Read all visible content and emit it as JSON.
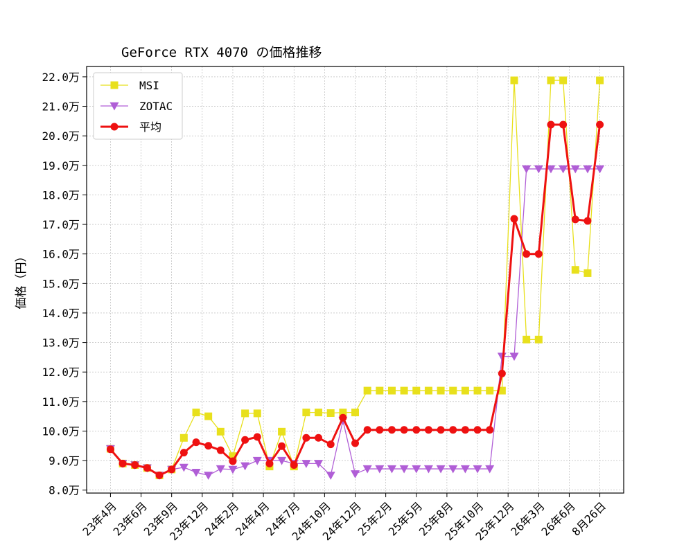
{
  "chart_data": {
    "type": "line",
    "title": "GeForce RTX 4070 の価格推移",
    "xlabel": "",
    "ylabel": "価格（円）",
    "ylim": [
      7.9,
      22.35
    ],
    "yticks": [
      8.0,
      9.0,
      10.0,
      11.0,
      12.0,
      13.0,
      14.0,
      15.0,
      16.0,
      17.0,
      18.0,
      19.0,
      20.0,
      21.0,
      22.0
    ],
    "ytick_labels": [
      "8.0万",
      "9.0万",
      "10.0万",
      "11.0万",
      "12.0万",
      "13.0万",
      "14.0万",
      "15.0万",
      "16.0万",
      "17.0万",
      "18.0万",
      "19.0万",
      "20.0万",
      "21.0万",
      "22.0万"
    ],
    "xtick_positions": [
      0,
      2.5,
      5,
      7.5,
      10,
      12.5,
      15,
      17.5,
      20,
      22.5,
      25,
      27.5,
      30,
      32.5,
      35,
      37.5,
      40
    ],
    "xtick_labels": [
      "23年4月",
      "23年6月",
      "23年9月",
      "23年12月",
      "24年2月",
      "24年4月",
      "24年7月",
      "24年10月",
      "24年12月",
      "25年2月",
      "25年5月",
      "25年8月",
      "25年10月",
      "25年12月",
      "26年3月",
      "26年6月",
      "8月26日"
    ],
    "grid": true,
    "legend_position": "top-left",
    "series": [
      {
        "name": "MSI",
        "color": "#e8e01c",
        "marker": "square",
        "values": [
          9.4,
          8.9,
          8.85,
          8.75,
          8.5,
          8.7,
          9.77,
          10.63,
          10.5,
          9.98,
          9.15,
          10.6,
          10.6,
          8.8,
          9.98,
          8.8,
          10.63,
          10.63,
          10.61,
          10.63,
          10.63,
          11.37,
          11.37,
          11.37,
          11.37,
          11.37,
          11.37,
          11.37,
          11.37,
          11.37,
          11.37,
          11.37,
          11.37,
          21.88,
          13.1,
          13.1,
          21.88,
          21.88,
          15.46,
          15.35,
          21.88
        ]
      },
      {
        "name": "ZOTAC",
        "color": "#b05ed6",
        "marker": "triangle-down",
        "values": [
          9.4,
          8.9,
          8.85,
          8.75,
          8.5,
          8.7,
          8.77,
          8.6,
          8.5,
          8.72,
          8.7,
          8.82,
          9.0,
          9.0,
          9.0,
          8.9,
          8.9,
          8.9,
          8.5,
          10.36,
          8.55,
          8.72,
          8.72,
          8.72,
          8.72,
          8.72,
          8.72,
          8.72,
          8.72,
          8.72,
          8.72,
          8.72,
          12.53,
          12.53,
          18.88,
          18.88,
          18.88,
          18.88,
          18.88,
          18.88,
          18.88
        ]
      },
      {
        "name": "平均",
        "color": "#ee1111",
        "marker": "circle",
        "values": [
          9.38,
          8.9,
          8.85,
          8.75,
          8.5,
          8.7,
          9.27,
          9.62,
          9.5,
          9.35,
          8.98,
          9.7,
          9.8,
          8.9,
          9.49,
          8.85,
          9.77,
          9.77,
          9.55,
          10.45,
          9.59,
          10.04,
          10.04,
          10.04,
          10.04,
          10.04,
          10.04,
          10.04,
          10.04,
          10.04,
          10.04,
          10.04,
          11.95,
          17.19,
          16.0,
          16.0,
          20.38,
          20.38,
          17.17,
          17.12,
          20.38
        ]
      }
    ]
  }
}
